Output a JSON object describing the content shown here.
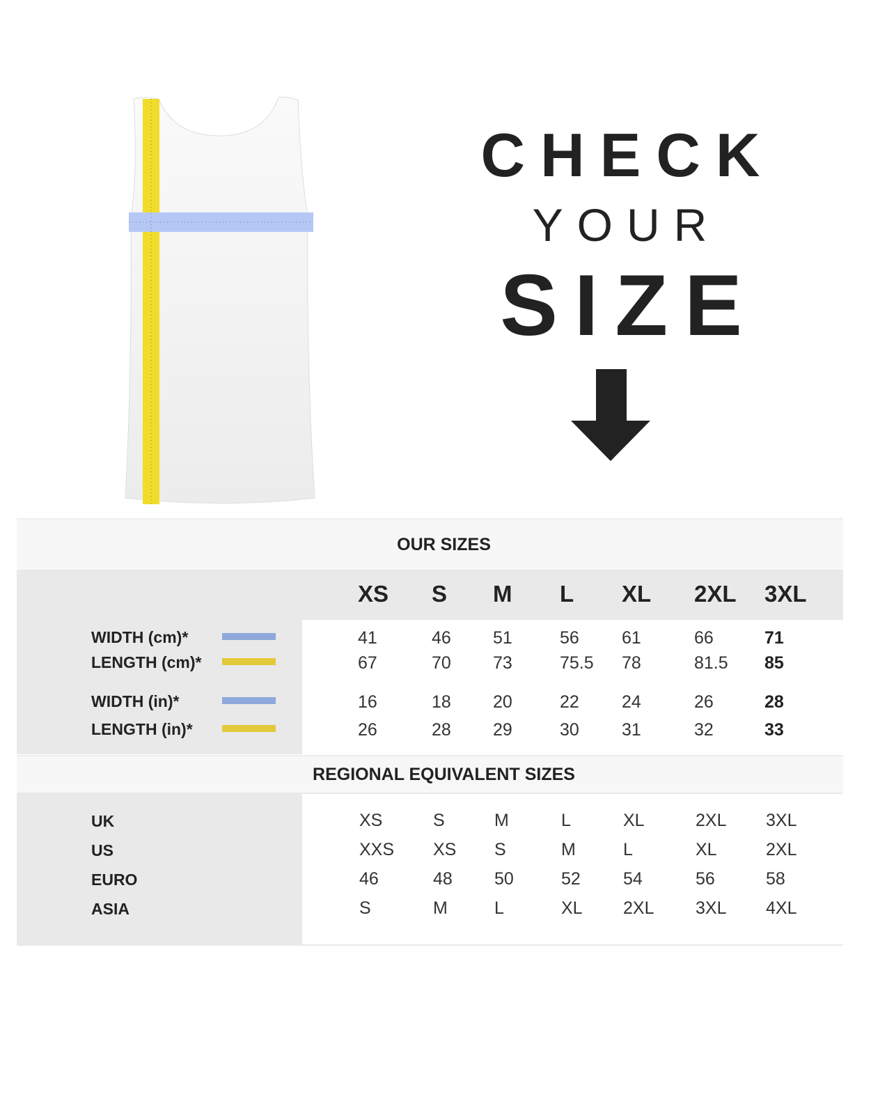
{
  "headline": {
    "line1": "CHECK",
    "line2": "YOUR",
    "line3": "SIZE",
    "icon": "arrow-down-icon"
  },
  "colors": {
    "width_swatch": "#8fa8dc",
    "length_swatch": "#e2c93a"
  },
  "our_sizes": {
    "title": "OUR SIZES",
    "sizes": [
      "XS",
      "S",
      "M",
      "L",
      "XL",
      "2XL",
      "3XL"
    ],
    "rows": [
      {
        "label": "WIDTH (cm)*",
        "swatch": "width",
        "values": [
          "41",
          "46",
          "51",
          "56",
          "61",
          "66",
          "71"
        ]
      },
      {
        "label": "LENGTH (cm)*",
        "swatch": "length",
        "values": [
          "67",
          "70",
          "73",
          "75.5",
          "78",
          "81.5",
          "85"
        ]
      },
      {
        "label": "WIDTH (in)*",
        "swatch": "width",
        "values": [
          "16",
          "18",
          "20",
          "22",
          "24",
          "26",
          "28"
        ]
      },
      {
        "label": "LENGTH (in)*",
        "swatch": "length",
        "values": [
          "26",
          "28",
          "29",
          "30",
          "31",
          "32",
          "33"
        ]
      }
    ]
  },
  "regional": {
    "title": "REGIONAL EQUIVALENT SIZES",
    "rows": [
      {
        "label": "UK",
        "values": [
          "XS",
          "S",
          "M",
          "L",
          "XL",
          "2XL",
          "3XL"
        ]
      },
      {
        "label": "US",
        "values": [
          "XXS",
          "XS",
          "S",
          "M",
          "L",
          "XL",
          "2XL"
        ]
      },
      {
        "label": "EURO",
        "values": [
          "46",
          "48",
          "50",
          "52",
          "54",
          "56",
          "58"
        ]
      },
      {
        "label": "ASIA",
        "values": [
          "S",
          "M",
          "L",
          "XL",
          "2XL",
          "3XL",
          "4XL"
        ]
      }
    ]
  }
}
